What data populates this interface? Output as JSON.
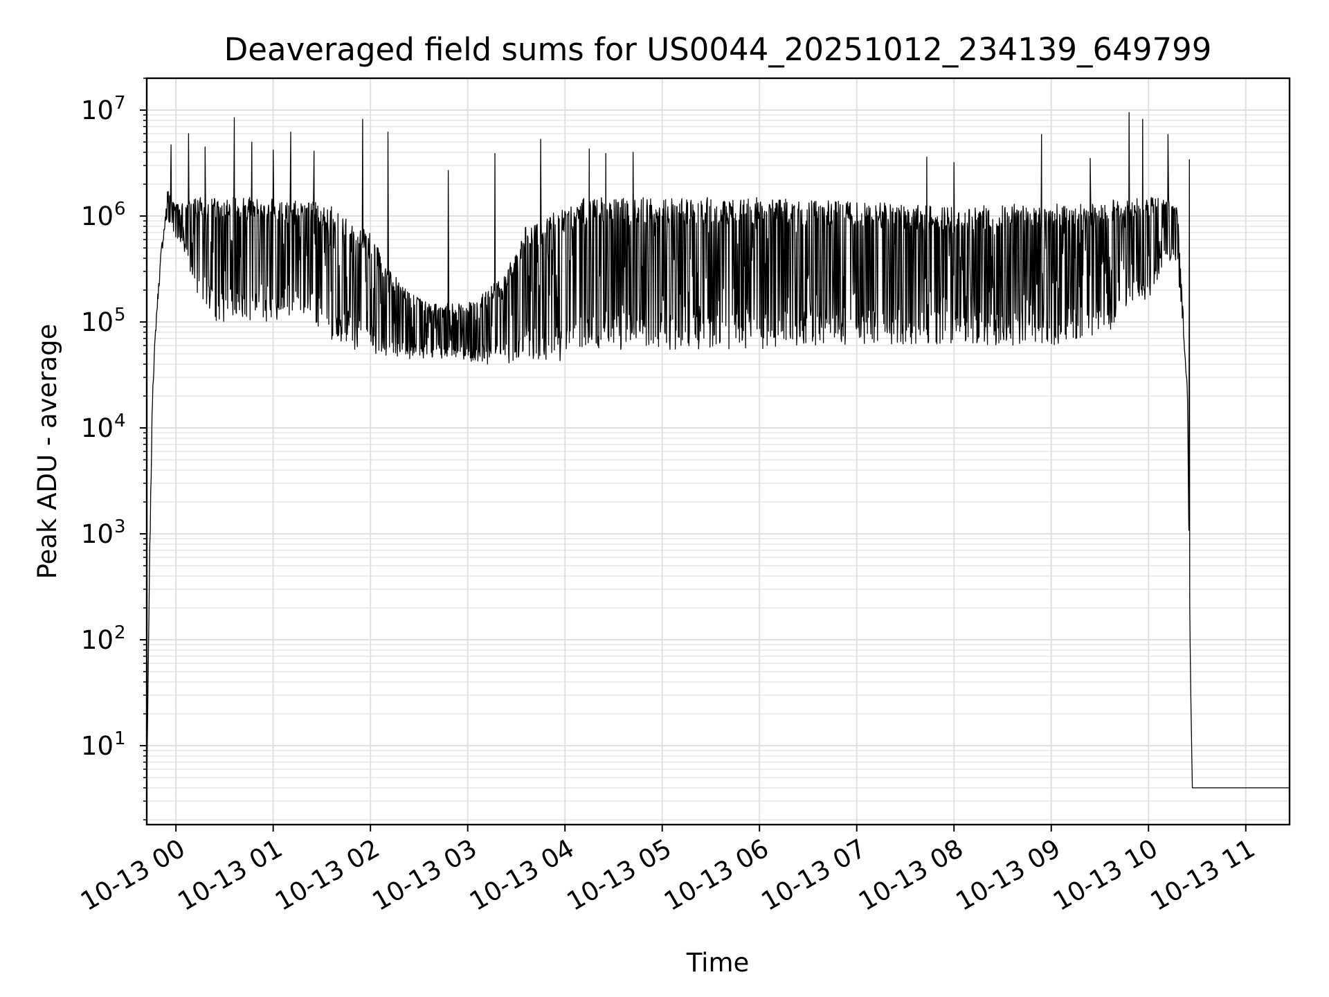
{
  "chart_data": {
    "type": "line",
    "title": "Deaveraged field sums for US0044_20251012_234139_649799",
    "xlabel": "Time",
    "ylabel": "Peak ADU - average",
    "yscale": "log",
    "ylim": [
      1.8,
      20000000
    ],
    "xlim": [
      -0.3,
      11.45
    ],
    "grid": true,
    "line_color": "#000000",
    "x_tick_values": [
      0,
      1,
      2,
      3,
      4,
      5,
      6,
      7,
      8,
      9,
      10,
      11
    ],
    "x_tick_labels": [
      "10-13 00",
      "10-13 01",
      "10-13 02",
      "10-13 03",
      "10-13 04",
      "10-13 05",
      "10-13 06",
      "10-13 07",
      "10-13 08",
      "10-13 09",
      "10-13 10",
      "10-13 11"
    ],
    "y_tick_exponents": [
      1,
      2,
      3,
      4,
      5,
      6,
      7
    ],
    "y_tick_base": "10",
    "series": [
      {
        "name": "field sums",
        "x_hours": [
          -0.3,
          -0.27,
          -0.24,
          -0.2,
          -0.15,
          -0.1,
          -0.05,
          0.0,
          0.1,
          0.2,
          0.3,
          0.4,
          0.5,
          0.6,
          0.8,
          1.0,
          1.2,
          1.4,
          1.6,
          1.8,
          2.0,
          2.2,
          2.4,
          2.6,
          2.8,
          3.0,
          3.2,
          3.4,
          3.6,
          3.8,
          4.0,
          4.2,
          4.5,
          5.0,
          5.5,
          6.0,
          6.5,
          7.0,
          7.5,
          8.0,
          8.5,
          9.0,
          9.5,
          10.0,
          10.2,
          10.3,
          10.35,
          10.4,
          10.43,
          10.45
        ],
        "base_low": [
          4,
          500,
          20000,
          100000,
          400000,
          900000,
          800000,
          600000,
          400000,
          200000,
          150000,
          100000,
          100000,
          110000,
          100000,
          100000,
          120000,
          100000,
          60000,
          55000,
          50000,
          45000,
          45000,
          45000,
          45000,
          42000,
          40000,
          40000,
          40000,
          40000,
          40000,
          55000,
          55000,
          55000,
          55000,
          55000,
          60000,
          60000,
          60000,
          60000,
          60000,
          60000,
          70000,
          150000,
          400000,
          300000,
          100000,
          20000,
          50,
          4
        ],
        "base_high": [
          4,
          1000,
          40000,
          200000,
          800000,
          2000000,
          1500000,
          1300000,
          1400000,
          1500000,
          1500000,
          1500000,
          1500000,
          1500000,
          1500000,
          1500000,
          1500000,
          1400000,
          1300000,
          1000000,
          700000,
          300000,
          200000,
          150000,
          150000,
          150000,
          200000,
          300000,
          800000,
          1000000,
          1300000,
          1500000,
          1500000,
          1500000,
          1500000,
          1500000,
          1400000,
          1400000,
          1300000,
          1200000,
          1300000,
          1300000,
          1400000,
          1500000,
          1500000,
          1200000,
          150000,
          30000,
          100,
          4
        ],
        "peaks": [
          {
            "x": -0.05,
            "y": 4700000
          },
          {
            "x": 0.13,
            "y": 6000000
          },
          {
            "x": 0.3,
            "y": 4500000
          },
          {
            "x": 0.6,
            "y": 8500000
          },
          {
            "x": 0.78,
            "y": 5000000
          },
          {
            "x": 1.0,
            "y": 4200000
          },
          {
            "x": 1.18,
            "y": 6200000
          },
          {
            "x": 1.42,
            "y": 4100000
          },
          {
            "x": 1.92,
            "y": 8200000
          },
          {
            "x": 2.18,
            "y": 6200000
          },
          {
            "x": 2.8,
            "y": 2700000
          },
          {
            "x": 3.28,
            "y": 3900000
          },
          {
            "x": 3.75,
            "y": 5300000
          },
          {
            "x": 4.25,
            "y": 4300000
          },
          {
            "x": 4.42,
            "y": 3900000
          },
          {
            "x": 4.7,
            "y": 4000000
          },
          {
            "x": 7.72,
            "y": 3600000
          },
          {
            "x": 8.0,
            "y": 3200000
          },
          {
            "x": 8.9,
            "y": 5900000
          },
          {
            "x": 9.4,
            "y": 3500000
          },
          {
            "x": 9.8,
            "y": 9500000
          },
          {
            "x": 9.94,
            "y": 8200000
          },
          {
            "x": 10.2,
            "y": 5900000
          },
          {
            "x": 10.42,
            "y": 3400000
          }
        ]
      }
    ]
  }
}
